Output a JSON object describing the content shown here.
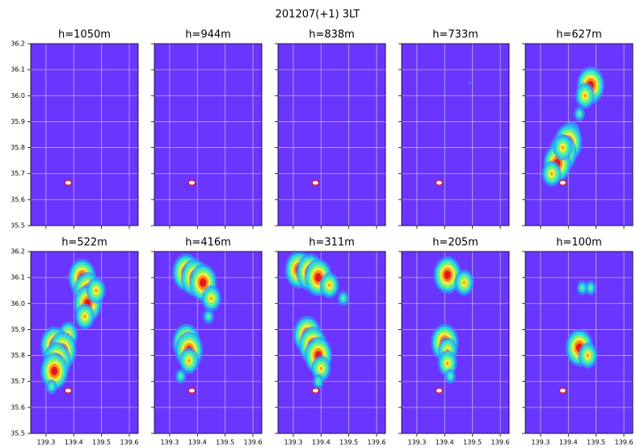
{
  "title": "201207(+1)  3LT",
  "chart_data": [
    {
      "type": "contour",
      "title": "h=1050m",
      "xlim": [
        139.245,
        139.632
      ],
      "ylim": [
        35.5,
        36.2
      ],
      "xticks": [
        139.3,
        139.4,
        139.5,
        139.6
      ],
      "yticks": [
        35.5,
        35.6,
        35.7,
        35.8,
        35.9,
        {
          "value": 36.0,
          "label": "36.0"
        },
        36.1,
        36.2
      ],
      "grid": true,
      "site": {
        "x": 139.38,
        "y": 35.665
      },
      "points": {
        "x": [],
        "y": [],
        "level": []
      }
    },
    {
      "type": "contour",
      "title": "h=944m",
      "xlim": [
        139.245,
        139.632
      ],
      "ylim": [
        35.5,
        36.2
      ],
      "xticks": [
        139.3,
        139.4,
        139.5,
        139.6
      ],
      "yticks": [
        35.5,
        35.6,
        35.7,
        35.8,
        35.9,
        36,
        36.1,
        36.2
      ],
      "grid": true,
      "site": {
        "x": 139.38,
        "y": 35.665
      },
      "points": {
        "x": [],
        "y": [],
        "level": []
      }
    },
    {
      "type": "contour",
      "title": "h=838m",
      "xlim": [
        139.245,
        139.632
      ],
      "ylim": [
        35.5,
        36.2
      ],
      "xticks": [
        139.3,
        139.4,
        139.5,
        139.6
      ],
      "yticks": [
        35.5,
        35.6,
        35.7,
        35.8,
        35.9,
        36,
        36.1,
        36.2
      ],
      "grid": true,
      "site": {
        "x": 139.38,
        "y": 35.665
      },
      "points": {
        "x": [],
        "y": [],
        "level": []
      }
    },
    {
      "type": "contour",
      "title": "h=733m",
      "xlim": [
        139.245,
        139.632
      ],
      "ylim": [
        35.5,
        36.2
      ],
      "xticks": [
        139.3,
        139.4,
        139.5,
        139.6
      ],
      "yticks": [
        35.5,
        35.6,
        35.7,
        35.8,
        35.9,
        36,
        36.1,
        36.2
      ],
      "grid": true,
      "site": {
        "x": 139.38,
        "y": 35.665
      },
      "points": {
        "x": [
          139.49
        ],
        "y": [
          36.05
        ],
        "level": [
          0
        ]
      }
    },
    {
      "type": "contour",
      "title": "h=627m",
      "xlim": [
        139.245,
        139.632
      ],
      "ylim": [
        35.5,
        36.2
      ],
      "xticks": [
        139.3,
        139.4,
        139.5,
        139.6
      ],
      "yticks": [
        35.5,
        35.6,
        35.7,
        35.8,
        35.9,
        36,
        36.1,
        36.2
      ],
      "grid": true,
      "site": {
        "x": 139.38,
        "y": 35.665
      },
      "points": {
        "x": [
          139.48,
          139.46,
          139.44,
          139.41,
          139.4,
          139.38,
          139.36,
          139.34,
          139.38
        ],
        "y": [
          36.04,
          36.0,
          35.93,
          35.85,
          35.82,
          35.78,
          35.74,
          35.7,
          35.8
        ],
        "level": [
          3,
          2,
          1,
          2,
          3,
          3,
          3,
          2,
          2
        ]
      }
    },
    {
      "type": "contour",
      "title": "h=522m",
      "xlim": [
        139.245,
        139.632
      ],
      "ylim": [
        35.5,
        36.2
      ],
      "xticks": [
        139.3,
        139.4,
        139.5,
        139.6
      ],
      "yticks": [
        35.5,
        35.6,
        35.7,
        35.8,
        35.9,
        {
          "value": 36.0,
          "label": "36.0"
        },
        36.1,
        36.2
      ],
      "grid": true,
      "site": {
        "x": 139.38,
        "y": 35.665
      },
      "points": {
        "x": [
          139.43,
          139.45,
          139.45,
          139.44,
          139.38,
          139.33,
          139.36,
          139.34,
          139.33,
          139.32,
          139.48
        ],
        "y": [
          36.1,
          36.05,
          36.0,
          35.95,
          35.88,
          35.84,
          35.82,
          35.78,
          35.74,
          35.68,
          36.05
        ],
        "level": [
          3,
          3,
          3,
          2,
          2,
          3,
          3,
          3,
          3,
          1,
          2
        ]
      }
    },
    {
      "type": "contour",
      "title": "h=416m",
      "xlim": [
        139.245,
        139.632
      ],
      "ylim": [
        35.5,
        36.2
      ],
      "xticks": [
        139.3,
        139.4,
        139.5,
        139.6
      ],
      "yticks": [
        35.5,
        35.6,
        35.7,
        35.8,
        35.9,
        36,
        36.1,
        36.2
      ],
      "grid": true,
      "site": {
        "x": 139.38,
        "y": 35.665
      },
      "points": {
        "x": [
          139.36,
          139.39,
          139.42,
          139.45,
          139.44,
          139.36,
          139.37,
          139.37,
          139.34
        ],
        "y": [
          36.12,
          36.1,
          36.08,
          36.02,
          35.95,
          35.85,
          35.82,
          35.78,
          35.72
        ],
        "level": [
          3,
          3,
          3,
          2,
          1,
          3,
          3,
          2,
          1
        ]
      }
    },
    {
      "type": "contour",
      "title": "h=311m",
      "xlim": [
        139.245,
        139.632
      ],
      "ylim": [
        35.5,
        36.2
      ],
      "xticks": [
        139.3,
        139.4,
        139.5,
        139.6
      ],
      "yticks": [
        35.5,
        35.6,
        35.7,
        35.8,
        35.9,
        36,
        36.1,
        36.2
      ],
      "grid": true,
      "site": {
        "x": 139.38,
        "y": 35.665
      },
      "points": {
        "x": [
          139.32,
          139.36,
          139.39,
          139.43,
          139.48,
          139.35,
          139.37,
          139.39,
          139.4,
          139.39
        ],
        "y": [
          36.13,
          36.12,
          36.1,
          36.07,
          36.02,
          35.88,
          35.84,
          35.8,
          35.75,
          35.7
        ],
        "level": [
          3,
          3,
          3,
          2,
          1,
          3,
          3,
          3,
          2,
          1
        ]
      }
    },
    {
      "type": "contour",
      "title": "h=205m",
      "xlim": [
        139.245,
        139.632
      ],
      "ylim": [
        35.5,
        36.2
      ],
      "xticks": [
        139.3,
        139.4,
        139.5,
        139.6
      ],
      "yticks": [
        35.5,
        35.6,
        35.7,
        35.8,
        35.9,
        36,
        36.1,
        36.2
      ],
      "grid": true,
      "site": {
        "x": 139.38,
        "y": 35.665
      },
      "points": {
        "x": [
          139.41,
          139.47,
          139.4,
          139.41,
          139.41,
          139.42
        ],
        "y": [
          36.11,
          36.08,
          35.85,
          35.82,
          35.77,
          35.72
        ],
        "level": [
          3,
          2,
          3,
          2,
          2,
          1
        ]
      }
    },
    {
      "type": "contour",
      "title": "h=100m",
      "xlim": [
        139.245,
        139.632
      ],
      "ylim": [
        35.5,
        36.2
      ],
      "xticks": [
        139.3,
        139.4,
        139.5,
        139.6
      ],
      "yticks": [
        35.5,
        35.6,
        35.7,
        35.8,
        35.9,
        36,
        36.1,
        36.2
      ],
      "grid": true,
      "site": {
        "x": 139.38,
        "y": 35.665
      },
      "points": {
        "x": [
          139.45,
          139.48,
          139.44,
          139.47
        ],
        "y": [
          36.06,
          36.06,
          35.83,
          35.8
        ],
        "level": [
          1,
          1,
          3,
          2
        ]
      }
    }
  ]
}
